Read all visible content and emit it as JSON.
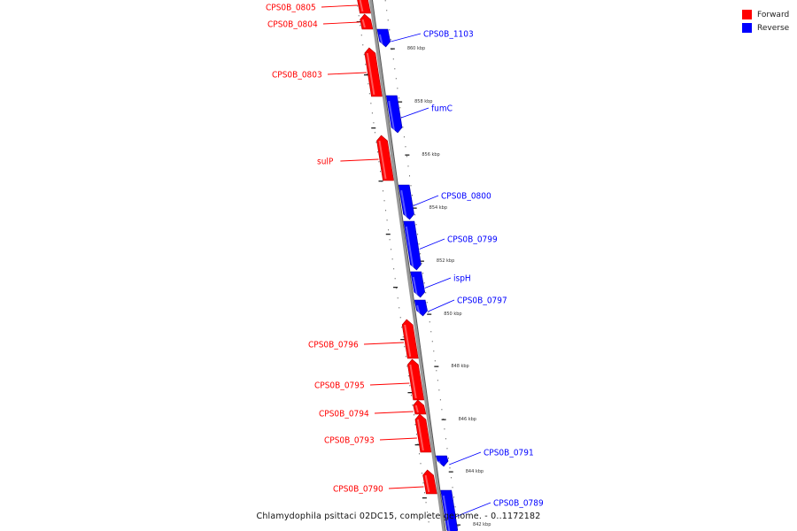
{
  "legend": {
    "forward_label": "Forward",
    "reverse_label": "Reverse",
    "forward_color": "#ff0000",
    "reverse_color": "#0000ff"
  },
  "footer": {
    "genome_title": "Chlamydophila psittaci 02DC15, complete genome. - 0..1172182"
  },
  "backbone_color": "#999999",
  "ticks": [
    "860 kbp",
    "858 kbp",
    "856 kbp",
    "854 kbp",
    "852 kbp",
    "850 kbp",
    "848 kbp",
    "846 kbp",
    "844 kbp",
    "842 kbp"
  ],
  "genes": [
    {
      "name": "CPS0B_0805",
      "strand": "forward"
    },
    {
      "name": "CPS0B_0804",
      "strand": "forward"
    },
    {
      "name": "CPS0B_1103",
      "strand": "reverse"
    },
    {
      "name": "CPS0B_0803",
      "strand": "forward"
    },
    {
      "name": "fumC",
      "strand": "reverse"
    },
    {
      "name": "sulP",
      "strand": "forward"
    },
    {
      "name": "CPS0B_0800",
      "strand": "reverse"
    },
    {
      "name": "CPS0B_0799",
      "strand": "reverse"
    },
    {
      "name": "ispH",
      "strand": "reverse"
    },
    {
      "name": "CPS0B_0797",
      "strand": "reverse"
    },
    {
      "name": "CPS0B_0796",
      "strand": "forward"
    },
    {
      "name": "CPS0B_0795",
      "strand": "forward"
    },
    {
      "name": "CPS0B_0794",
      "strand": "forward"
    },
    {
      "name": "CPS0B_0793",
      "strand": "forward"
    },
    {
      "name": "CPS0B_0791",
      "strand": "reverse"
    },
    {
      "name": "CPS0B_0790",
      "strand": "forward"
    },
    {
      "name": "CPS0B_0789",
      "strand": "reverse"
    }
  ]
}
